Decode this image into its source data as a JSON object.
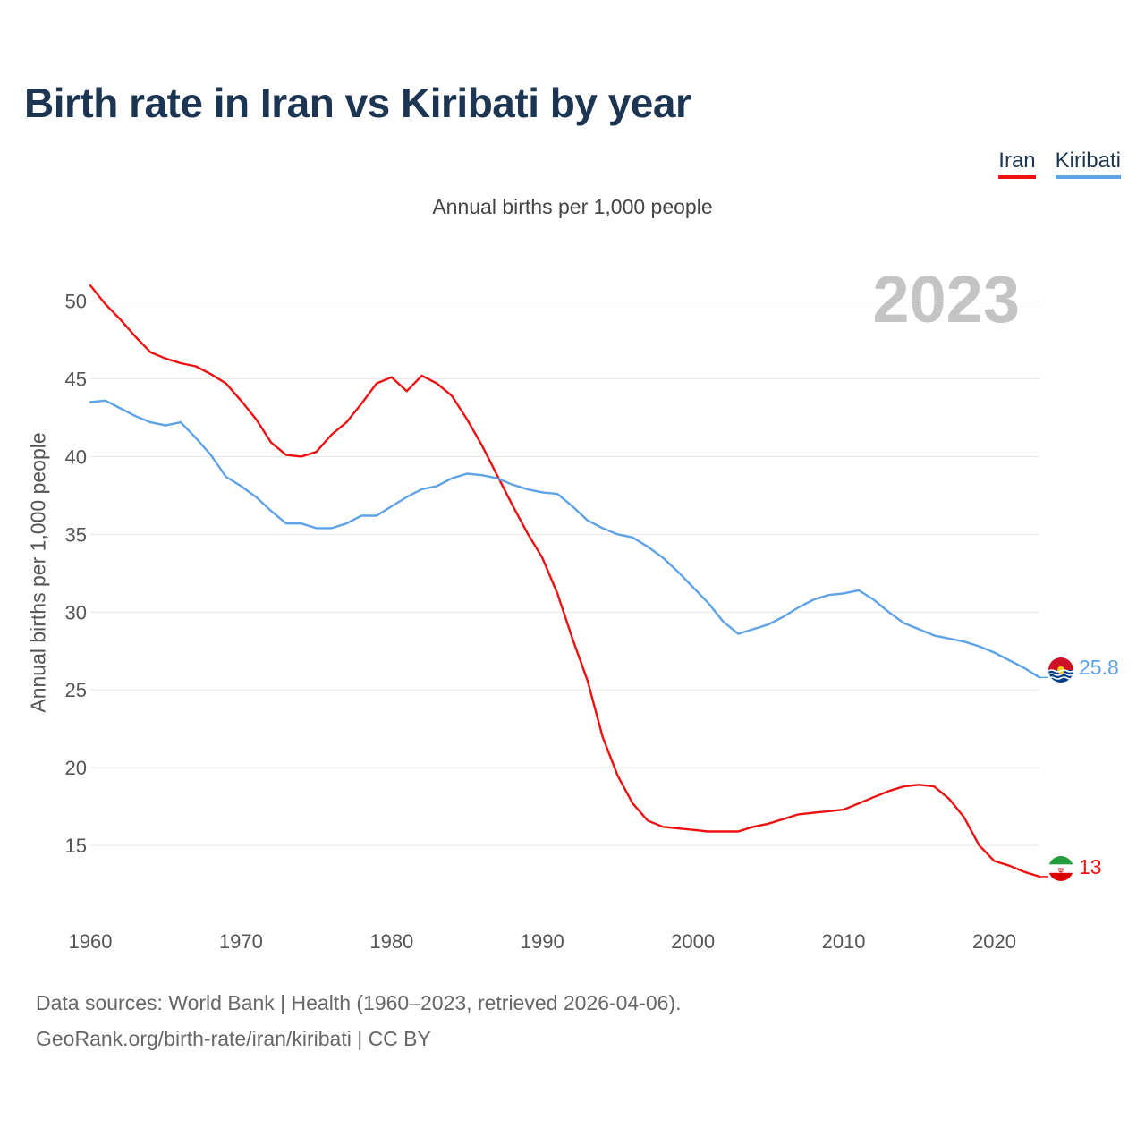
{
  "title": "Birth rate in Iran vs Kiribati by year",
  "subtitle": "Annual births per 1,000 people",
  "year_badge": "2023",
  "legend": [
    {
      "label": "Iran",
      "color": "#ee1111"
    },
    {
      "label": "Kiribati",
      "color": "#5ea3e6"
    }
  ],
  "sources": {
    "line1": "Data sources: World Bank | Health (1960–2023, retrieved 2026-04-06).",
    "line2": "GeoRank.org/birth-rate/iran/kiribati | CC BY"
  },
  "chart_data": {
    "type": "line",
    "title": "Birth rate in Iran vs Kiribati by year",
    "xlabel": "",
    "ylabel": "Annual births per 1,000 people",
    "xlim": [
      1960,
      2023
    ],
    "ylim": [
      11.5,
      52.5
    ],
    "x_ticks": [
      1960,
      1970,
      1980,
      1990,
      2000,
      2010,
      2020
    ],
    "y_ticks": [
      15,
      20,
      25,
      30,
      35,
      40,
      45,
      50
    ],
    "x": [
      1960,
      1961,
      1962,
      1963,
      1964,
      1965,
      1966,
      1967,
      1968,
      1969,
      1970,
      1971,
      1972,
      1973,
      1974,
      1975,
      1976,
      1977,
      1978,
      1979,
      1980,
      1981,
      1982,
      1983,
      1984,
      1985,
      1986,
      1987,
      1988,
      1989,
      1990,
      1991,
      1992,
      1993,
      1994,
      1995,
      1996,
      1997,
      1998,
      1999,
      2000,
      2001,
      2002,
      2003,
      2004,
      2005,
      2006,
      2007,
      2008,
      2009,
      2010,
      2011,
      2012,
      2013,
      2014,
      2015,
      2016,
      2017,
      2018,
      2019,
      2020,
      2021,
      2022,
      2023
    ],
    "series": [
      {
        "name": "Iran",
        "color": "#ee1111",
        "end_label": "13",
        "values": [
          51.0,
          49.8,
          48.8,
          47.7,
          46.7,
          46.3,
          46.0,
          45.8,
          45.3,
          44.7,
          43.6,
          42.4,
          40.9,
          40.1,
          40.0,
          40.3,
          41.4,
          42.2,
          43.4,
          44.7,
          45.1,
          44.2,
          45.2,
          44.7,
          43.9,
          42.4,
          40.7,
          38.8,
          36.9,
          35.1,
          33.5,
          31.2,
          28.3,
          25.6,
          22.0,
          19.5,
          17.7,
          16.6,
          16.2,
          16.1,
          16.0,
          15.9,
          15.9,
          15.9,
          16.2,
          16.4,
          16.7,
          17.0,
          17.1,
          17.2,
          17.3,
          17.7,
          18.1,
          18.5,
          18.8,
          18.9,
          18.8,
          18.0,
          16.8,
          15.0,
          14.0,
          13.7,
          13.3,
          13.0
        ]
      },
      {
        "name": "Kiribati",
        "color": "#5ea3e6",
        "end_label": "25.8",
        "values": [
          43.5,
          43.6,
          43.1,
          42.6,
          42.2,
          42.0,
          42.2,
          41.2,
          40.1,
          38.7,
          38.1,
          37.4,
          36.5,
          35.7,
          35.7,
          35.4,
          35.4,
          35.7,
          36.2,
          36.2,
          36.8,
          37.4,
          37.9,
          38.1,
          38.6,
          38.9,
          38.8,
          38.6,
          38.2,
          37.9,
          37.7,
          37.6,
          36.8,
          35.9,
          35.4,
          35.0,
          34.8,
          34.2,
          33.5,
          32.6,
          31.6,
          30.6,
          29.4,
          28.6,
          28.9,
          29.2,
          29.7,
          30.3,
          30.8,
          31.1,
          31.2,
          31.4,
          30.8,
          30.0,
          29.3,
          28.9,
          28.5,
          28.3,
          28.1,
          27.8,
          27.4,
          26.9,
          26.4,
          25.8
        ]
      }
    ]
  }
}
